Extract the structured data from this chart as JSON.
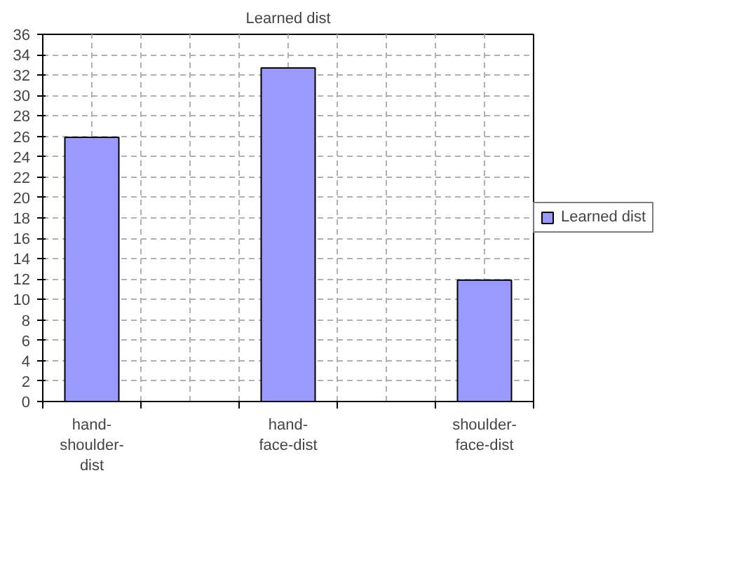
{
  "chart_data": {
    "type": "bar",
    "title": "Learned dist",
    "categories": [
      "hand-shoulder-dist",
      null,
      "hand-face-dist",
      null,
      "shoulder-face-dist"
    ],
    "series": [
      {
        "name": "Learned dist",
        "color": "#9999ff",
        "values": [
          25.9,
          null,
          32.7,
          null,
          11.9
        ]
      }
    ],
    "ylim": [
      0,
      36
    ],
    "yticks": [
      0,
      2,
      4,
      6,
      8,
      10,
      12,
      14,
      16,
      18,
      20,
      22,
      24,
      26,
      28,
      30,
      32,
      34,
      36
    ],
    "grid": true,
    "legend": "right"
  }
}
